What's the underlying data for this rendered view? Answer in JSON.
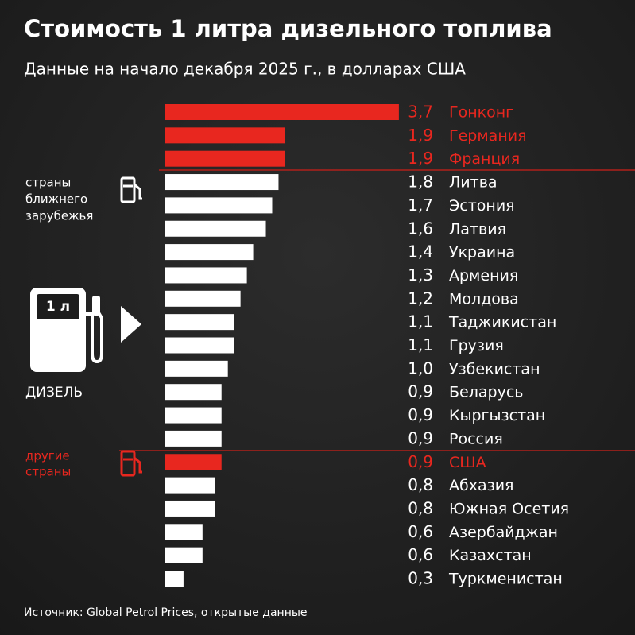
{
  "chart_data": {
    "type": "hbar",
    "title": "Стоимость 1 литра дизельного топлива",
    "subtitle": "Данные на начало декабря 2025 г., в долларах США",
    "categories": [
      "Гонконг",
      "Германия",
      "Франция",
      "Литва",
      "Эстония",
      "Латвия",
      "Украина",
      "Армения",
      "Молдова",
      "Таджикистан",
      "Грузия",
      "Узбекистан",
      "Беларусь",
      "Кыргызстан",
      "Россия",
      "США",
      "Абхазия",
      "Южная Осетия",
      "Азербайджан",
      "Казахстан",
      "Туркменистан"
    ],
    "values": [
      3.7,
      1.9,
      1.9,
      1.8,
      1.7,
      1.6,
      1.4,
      1.3,
      1.2,
      1.1,
      1.1,
      1.0,
      0.9,
      0.9,
      0.9,
      0.9,
      0.8,
      0.8,
      0.6,
      0.6,
      0.3
    ],
    "value_labels": [
      "3,7",
      "1,9",
      "1,9",
      "1,8",
      "1,7",
      "1,6",
      "1,4",
      "1,3",
      "1,2",
      "1,1",
      "1,1",
      "1,0",
      "0,9",
      "0,9",
      "0,9",
      "0,9",
      "0,8",
      "0,8",
      "0,6",
      "0,6",
      "0,3"
    ],
    "colors": [
      "#e8271f",
      "#e8271f",
      "#e8271f",
      "#ffffff",
      "#ffffff",
      "#ffffff",
      "#ffffff",
      "#ffffff",
      "#ffffff",
      "#ffffff",
      "#ffffff",
      "#ffffff",
      "#ffffff",
      "#ffffff",
      "#ffffff",
      "#e8271f",
      "#ffffff",
      "#ffffff",
      "#ffffff",
      "#ffffff",
      "#ffffff"
    ],
    "annotations": {
      "near_countries": [
        "страны",
        "ближнего",
        "зарубежья"
      ],
      "pump_label": "1 л",
      "fuel": "ДИЗЕЛЬ",
      "other_countries": [
        "другие",
        "страны"
      ]
    },
    "source": "Источник: Global Petrol Prices, открытые данные"
  }
}
